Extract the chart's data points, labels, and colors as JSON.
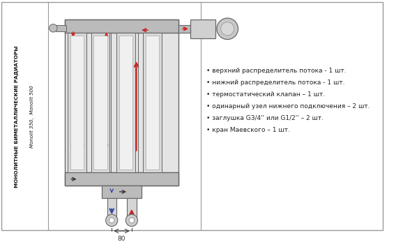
{
  "bg_color": "#ffffff",
  "border_color": "#999999",
  "red_color": "#cc2222",
  "blue_color": "#3344aa",
  "dark_color": "#333333",
  "line_color": "#666666",
  "rad_fill": "#e8e8e8",
  "rad_dark": "#bbbbbb",
  "rad_light": "#f0f0f0",
  "bullet_items": [
    "• верхний распределитель потока - 1 шт.",
    "• нижний распределитель потока - 1 шт.",
    "• термостатический клапан – 1 шт.",
    "• одинарный узел нижнего подключения – 2 шт.",
    "• заглушка G3/4'' или G1/2'' – 2 шт.",
    "• кран Маевского – 1 шт."
  ],
  "left_title1": "МОНОЛИТНЫЕ БИМЕТАЛЛИЧЕСКИЕ РАДИАТОРЫ",
  "left_title2": "Monolit 350,  Monolit 500"
}
